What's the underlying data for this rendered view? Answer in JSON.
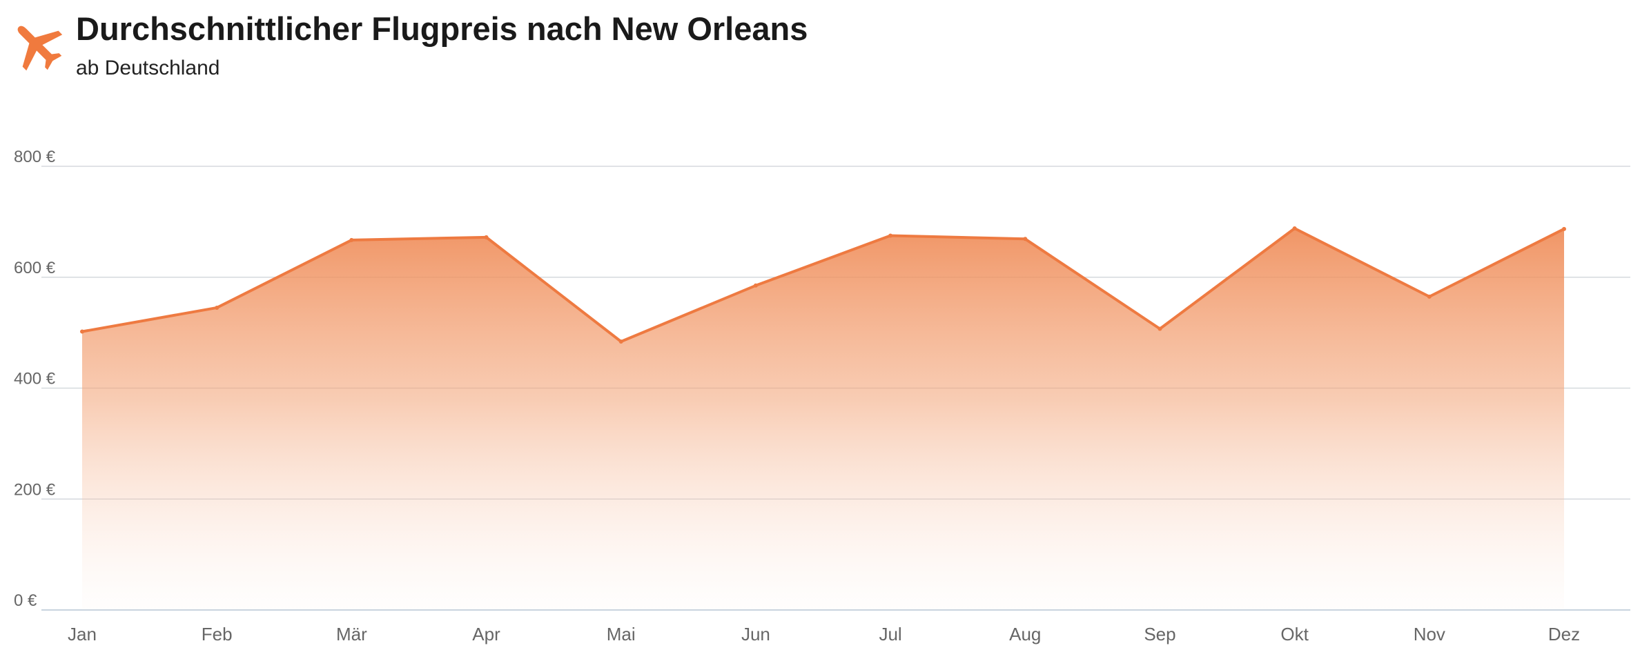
{
  "header": {
    "title": "Durchschnittlicher Flugpreis nach New Orleans",
    "subtitle": "ab Deutschland",
    "icon": "airplane-icon"
  },
  "colors": {
    "accent": "#f07a3e",
    "line": "#ee7a41",
    "grid": "#d5d9de",
    "baseline": "#c8d3de"
  },
  "chart_data": {
    "type": "area",
    "title": "Durchschnittlicher Flugpreis nach New Orleans",
    "subtitle": "ab Deutschland",
    "categories": [
      "Jan",
      "Feb",
      "Mär",
      "Apr",
      "Mai",
      "Jun",
      "Jul",
      "Aug",
      "Sep",
      "Okt",
      "Nov",
      "Dez"
    ],
    "series": [
      {
        "values": [
          502,
          545,
          667,
          672,
          484,
          585,
          675,
          669,
          507,
          688,
          565,
          687
        ]
      }
    ],
    "ylim": [
      0,
      800
    ],
    "yticks": [
      0,
      200,
      400,
      600,
      800
    ],
    "ytick_labels": [
      "0 €",
      "200 €",
      "400 €",
      "600 €",
      "800 €"
    ],
    "grid": true,
    "legend": "none"
  }
}
